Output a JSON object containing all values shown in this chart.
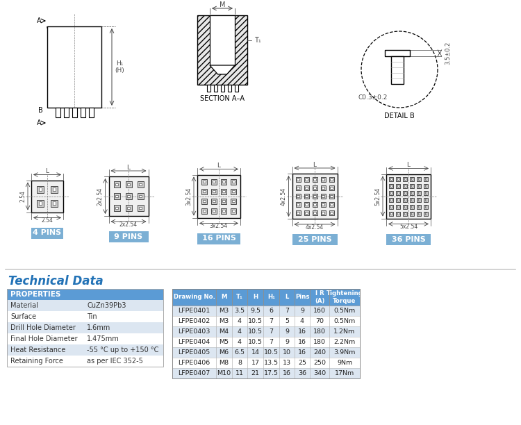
{
  "bg_color": "#ffffff",
  "title_color": "#2272b6",
  "table_header_bg": "#5b9bd5",
  "table_header_fg": "#ffffff",
  "table_row_bg_even": "#dce6f1",
  "table_row_bg_odd": "#ffffff",
  "props_header_bg": "#5b9bd5",
  "props_header_fg": "#ffffff",
  "pins_label_bg": "#7bafd4",
  "pins_label_fg": "#ffffff",
  "line_color": "#000000",
  "dim_color": "#444444",
  "properties": [
    [
      "Material",
      "CuZn39Pb3"
    ],
    [
      "Surface",
      "Tin"
    ],
    [
      "Drill Hole Diameter",
      "1.6mm"
    ],
    [
      "Final Hole Diameter",
      "1.475mm"
    ],
    [
      "Heat Resistance",
      "-55 °C up to +150 °C"
    ],
    [
      "Retaining Force",
      "as per IEC 352-5"
    ]
  ],
  "table_headers": [
    "Drawing No.",
    "M",
    "T₁",
    "H",
    "H₁",
    "L",
    "Pins",
    "I R\n(A)",
    "Tightening\nTorque"
  ],
  "table_rows": [
    [
      "LFPE0401",
      "M3",
      "3.5",
      "9.5",
      "6",
      "7",
      "9",
      "160",
      "0.5Nm"
    ],
    [
      "LFPE0402",
      "M3",
      "4",
      "10.5",
      "7",
      "5",
      "4",
      "70",
      "0.5Nm"
    ],
    [
      "LFPE0403",
      "M4",
      "4",
      "10.5",
      "7",
      "9",
      "16",
      "180",
      "1.2Nm"
    ],
    [
      "LFPE0404",
      "M5",
      "4",
      "10.5",
      "7",
      "9",
      "16",
      "180",
      "2.2Nm"
    ],
    [
      "LFPE0405",
      "M6",
      "6.5",
      "14",
      "10.5",
      "10",
      "16",
      "240",
      "3.9Nm"
    ],
    [
      "LFPE0406",
      "M8",
      "8",
      "17",
      "13.5",
      "13",
      "25",
      "250",
      "9Nm"
    ],
    [
      "LFPE0407",
      "M10",
      "11",
      "21",
      "17.5",
      "16",
      "36",
      "340",
      "17Nm"
    ]
  ],
  "pin_configs": [
    {
      "label": "4 PINS",
      "rows": 2,
      "cols": 2,
      "pitch_v": "2.54",
      "pitch_h": "2.54"
    },
    {
      "label": "9 PINS",
      "rows": 3,
      "cols": 3,
      "pitch_v": "2x2.54",
      "pitch_h": "2x2.54"
    },
    {
      "label": "16 PINS",
      "rows": 4,
      "cols": 4,
      "pitch_v": "3x2.54",
      "pitch_h": "3x2.54"
    },
    {
      "label": "25 PINS",
      "rows": 5,
      "cols": 5,
      "pitch_v": "4x2.54",
      "pitch_h": "4x2.54"
    },
    {
      "label": "36 PINS",
      "rows": 6,
      "cols": 6,
      "pitch_v": "5x2.54",
      "pitch_h": "5x2.54"
    }
  ]
}
